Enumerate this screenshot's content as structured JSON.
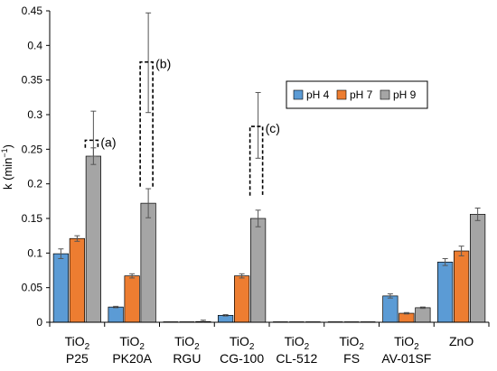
{
  "chart_data": {
    "type": "bar",
    "title": "",
    "xlabel": "",
    "ylabel": "k (min",
    "ylabel_sup": "−1",
    "ylabel_end": ")",
    "ylim": [
      0,
      0.45
    ],
    "yticks": [
      0,
      0.05,
      0.1,
      0.15,
      0.2,
      0.25,
      0.3,
      0.35,
      0.4,
      0.45
    ],
    "ytick_labels": [
      "0",
      "0.05",
      "0.1",
      "0.15",
      "0.2",
      "0.25",
      "0.3",
      "0.35",
      "0.4",
      "0.45"
    ],
    "grid": false,
    "legend_position": "top-right",
    "categories": [
      {
        "main": "TiO",
        "sub": "2",
        "line2": "P25"
      },
      {
        "main": "TiO",
        "sub": "2",
        "line2": "PK20A"
      },
      {
        "main": "TiO",
        "sub": "2",
        "line2": "RGU"
      },
      {
        "main": "TiO",
        "sub": "2",
        "line2": "CG-100"
      },
      {
        "main": "TiO",
        "sub": "2",
        "line2": "CL-512"
      },
      {
        "main": "TiO",
        "sub": "2",
        "line2": "FS"
      },
      {
        "main": "TiO",
        "sub": "2",
        "line2": "AV-01SF"
      },
      {
        "main": "ZnO",
        "sub": "",
        "line2": ""
      }
    ],
    "series": [
      {
        "name": "pH 4",
        "color": "#5b9bd5",
        "values": [
          0.099,
          0.022,
          0.0,
          0.01,
          0.0,
          0.0,
          0.038,
          0.087
        ],
        "errors": [
          0.007,
          0.001,
          0.0,
          0.001,
          0.0,
          0.0,
          0.003,
          0.005
        ]
      },
      {
        "name": "pH 7",
        "color": "#ed7d31",
        "values": [
          0.121,
          0.067,
          0.0,
          0.067,
          0.0,
          0.0,
          0.013,
          0.103
        ],
        "errors": [
          0.004,
          0.003,
          0.0,
          0.003,
          0.0,
          0.0,
          0.001,
          0.007
        ]
      },
      {
        "name": "pH 9",
        "color": "#a5a5a5",
        "values": [
          0.24,
          0.172,
          0.001,
          0.15,
          0.0,
          0.0,
          0.021,
          0.156
        ],
        "errors": [
          0.012,
          0.021,
          0.002,
          0.012,
          0.0,
          0.0,
          0.001,
          0.009
        ]
      }
    ],
    "extra_error_bars": [
      {
        "category_index": 0,
        "series_index": 2,
        "low": 0.24,
        "high": 0.305
      },
      {
        "category_index": 1,
        "series_index": 2,
        "low": 0.303,
        "high": 0.447
      },
      {
        "category_index": 3,
        "series_index": 2,
        "low": 0.237,
        "high": 0.332
      }
    ],
    "annotations": [
      {
        "label": "(a)",
        "category_index": 0,
        "bottom": 0.252,
        "top": 0.263
      },
      {
        "label": "(b)",
        "category_index": 1,
        "bottom": 0.196,
        "top": 0.376
      },
      {
        "label": "(c)",
        "category_index": 3,
        "bottom": 0.183,
        "top": 0.283
      }
    ]
  }
}
